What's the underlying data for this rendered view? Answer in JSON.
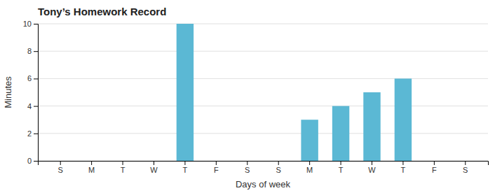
{
  "chart_data": {
    "type": "bar",
    "title": "Tony’s Homework Record",
    "xlabel": "Days of week",
    "ylabel": "Minutes",
    "categories": [
      "S",
      "M",
      "T",
      "W",
      "T",
      "F",
      "S",
      "S",
      "M",
      "T",
      "W",
      "T",
      "F",
      "S"
    ],
    "values": [
      0,
      0,
      0,
      0,
      10,
      0,
      0,
      0,
      3,
      4,
      5,
      6,
      0,
      0
    ],
    "color": "#5bb8d4",
    "ylim": [
      0,
      10
    ],
    "yticks": [
      0,
      2,
      4,
      6,
      8,
      10
    ],
    "grid": true
  }
}
